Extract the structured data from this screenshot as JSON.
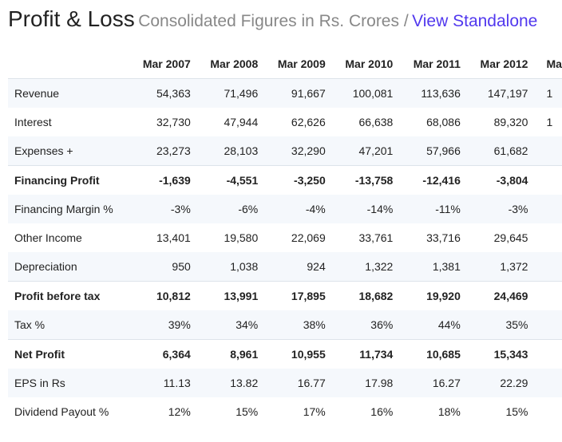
{
  "header": {
    "title": "Profit & Loss",
    "subtitle": "Consolidated Figures in Rs. Crores /",
    "link": "View Standalone"
  },
  "columns": [
    "Mar 2007",
    "Mar 2008",
    "Mar 2009",
    "Mar 2010",
    "Mar 2011",
    "Mar 2012",
    "Ma"
  ],
  "rows": [
    {
      "label": "Revenue",
      "values": [
        "54,363",
        "71,496",
        "91,667",
        "100,081",
        "113,636",
        "147,197",
        "1"
      ]
    },
    {
      "label": "Interest",
      "values": [
        "32,730",
        "47,944",
        "62,626",
        "66,638",
        "68,086",
        "89,320",
        "1"
      ]
    },
    {
      "label": "Expenses +",
      "values": [
        "23,273",
        "28,103",
        "32,290",
        "47,201",
        "57,966",
        "61,682",
        ""
      ]
    },
    {
      "label": "Financing Profit",
      "values": [
        "-1,639",
        "-4,551",
        "-3,250",
        "-13,758",
        "-12,416",
        "-3,804",
        ""
      ]
    },
    {
      "label": "Financing Margin %",
      "values": [
        "-3%",
        "-6%",
        "-4%",
        "-14%",
        "-11%",
        "-3%",
        ""
      ]
    },
    {
      "label": "Other Income",
      "values": [
        "13,401",
        "19,580",
        "22,069",
        "33,761",
        "33,716",
        "29,645",
        ""
      ]
    },
    {
      "label": "Depreciation",
      "values": [
        "950",
        "1,038",
        "924",
        "1,322",
        "1,381",
        "1,372",
        ""
      ]
    },
    {
      "label": "Profit before tax",
      "values": [
        "10,812",
        "13,991",
        "17,895",
        "18,682",
        "19,920",
        "24,469",
        ""
      ]
    },
    {
      "label": "Tax %",
      "values": [
        "39%",
        "34%",
        "38%",
        "36%",
        "44%",
        "35%",
        ""
      ]
    },
    {
      "label": "Net Profit",
      "values": [
        "6,364",
        "8,961",
        "10,955",
        "11,734",
        "10,685",
        "15,343",
        ""
      ]
    },
    {
      "label": "EPS in Rs",
      "values": [
        "11.13",
        "13.82",
        "16.77",
        "17.98",
        "16.27",
        "22.29",
        ""
      ]
    },
    {
      "label": "Dividend Payout %",
      "values": [
        "12%",
        "15%",
        "17%",
        "16%",
        "18%",
        "15%",
        ""
      ]
    }
  ]
}
